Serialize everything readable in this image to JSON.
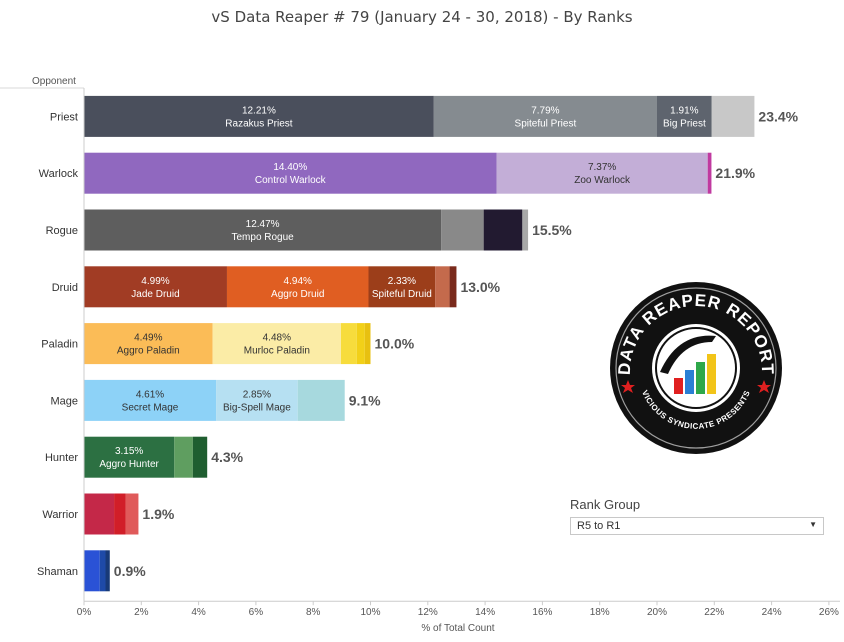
{
  "page": {
    "title": "vS Data Reaper #  79 (January 24 - 30, 2018) - By Ranks",
    "row_header": "Opponent"
  },
  "filter": {
    "title": "Rank Group",
    "selected": "R5 to R1",
    "icon": "chevron-down-icon"
  },
  "logo": {
    "text": "DATA REAPER REPORT",
    "subtext": "VICIOUS SYNDICATE PRESENTS",
    "colors": [
      "#e02020",
      "#2a7fd4",
      "#2ea84a",
      "#f2c418"
    ]
  },
  "chart_data": {
    "type": "bar",
    "orientation": "horizontal",
    "stacked": true,
    "title": "vS Data Reaper #  79 (January 24 - 30, 2018) - By Ranks",
    "xlabel": "% of Total Count",
    "ylabel": "Opponent",
    "xlim": [
      0,
      26
    ],
    "xticks": [
      "0%",
      "2%",
      "4%",
      "6%",
      "8%",
      "10%",
      "12%",
      "14%",
      "16%",
      "18%",
      "20%",
      "22%",
      "24%",
      "26%"
    ],
    "grid": false,
    "rows": [
      {
        "category": "Priest",
        "total": "23.4%",
        "segments": [
          {
            "value": 12.21,
            "label": "12.21%",
            "archetype": "Razakus Priest",
            "color": "#4a4f5c"
          },
          {
            "value": 7.79,
            "label": "7.79%",
            "archetype": "Spiteful Priest",
            "color": "#858b90"
          },
          {
            "value": 1.91,
            "label": "1.91%",
            "archetype": "Big Priest",
            "color": "#5e646e"
          },
          {
            "value": 1.49,
            "label": "",
            "archetype": "",
            "color": "#c8c8c8"
          }
        ]
      },
      {
        "category": "Warlock",
        "total": "21.9%",
        "segments": [
          {
            "value": 14.4,
            "label": "14.40%",
            "archetype": "Control Warlock",
            "color": "#9068bf"
          },
          {
            "value": 7.37,
            "label": "7.37%",
            "archetype": "Zoo Warlock",
            "color": "#c3aed7"
          },
          {
            "value": 0.13,
            "label": "",
            "archetype": "",
            "color": "#c03aa0"
          }
        ]
      },
      {
        "category": "Rogue",
        "total": "15.5%",
        "segments": [
          {
            "value": 12.47,
            "label": "12.47%",
            "archetype": "Tempo Rogue",
            "color": "#5e5e5e"
          },
          {
            "value": 1.48,
            "label": "",
            "archetype": "",
            "color": "#898989"
          },
          {
            "value": 1.35,
            "label": "",
            "archetype": "",
            "color": "#221a30"
          },
          {
            "value": 0.2,
            "label": "",
            "archetype": "",
            "color": "#a8a8a8"
          }
        ]
      },
      {
        "category": "Druid",
        "total": "13.0%",
        "segments": [
          {
            "value": 4.99,
            "label": "4.99%",
            "archetype": "Jade Druid",
            "color": "#a13c24"
          },
          {
            "value": 4.94,
            "label": "4.94%",
            "archetype": "Aggro Druid",
            "color": "#e05e22"
          },
          {
            "value": 2.33,
            "label": "2.33%",
            "archetype": "Spiteful Druid",
            "color": "#9c3e1a"
          },
          {
            "value": 0.5,
            "label": "",
            "archetype": "",
            "color": "#c46a4c"
          },
          {
            "value": 0.24,
            "label": "",
            "archetype": "",
            "color": "#7a2a1c"
          }
        ]
      },
      {
        "category": "Paladin",
        "total": "10.0%",
        "segments": [
          {
            "value": 4.49,
            "label": "4.49%",
            "archetype": "Aggro Paladin",
            "color": "#fbbc57"
          },
          {
            "value": 4.48,
            "label": "4.48%",
            "archetype": "Murloc Paladin",
            "color": "#fbeca6"
          },
          {
            "value": 0.55,
            "label": "",
            "archetype": "",
            "color": "#f7dc3c"
          },
          {
            "value": 0.28,
            "label": "",
            "archetype": "",
            "color": "#f2d018"
          },
          {
            "value": 0.2,
            "label": "",
            "archetype": "",
            "color": "#e8c010"
          }
        ]
      },
      {
        "category": "Mage",
        "total": "9.1%",
        "segments": [
          {
            "value": 4.61,
            "label": "4.61%",
            "archetype": "Secret Mage",
            "color": "#8dd2f7"
          },
          {
            "value": 2.85,
            "label": "2.85%",
            "archetype": "Big-Spell Mage",
            "color": "#b6e0f2"
          },
          {
            "value": 1.64,
            "label": "",
            "archetype": "",
            "color": "#a7d9de"
          }
        ]
      },
      {
        "category": "Hunter",
        "total": "4.3%",
        "segments": [
          {
            "value": 3.15,
            "label": "3.15%",
            "archetype": "Aggro Hunter",
            "color": "#2c7042"
          },
          {
            "value": 0.65,
            "label": "",
            "archetype": "",
            "color": "#5f9e60"
          },
          {
            "value": 0.5,
            "label": "",
            "archetype": "",
            "color": "#1f5e30"
          }
        ]
      },
      {
        "category": "Warrior",
        "total": "1.9%",
        "segments": [
          {
            "value": 1.05,
            "label": "",
            "archetype": "",
            "color": "#c42848"
          },
          {
            "value": 0.4,
            "label": "",
            "archetype": "",
            "color": "#d11e28"
          },
          {
            "value": 0.45,
            "label": "",
            "archetype": "",
            "color": "#e05a5a"
          }
        ]
      },
      {
        "category": "Shaman",
        "total": "0.9%",
        "segments": [
          {
            "value": 0.55,
            "label": "",
            "archetype": "",
            "color": "#2a52d6"
          },
          {
            "value": 0.2,
            "label": "",
            "archetype": "",
            "color": "#1e4aa8"
          },
          {
            "value": 0.15,
            "label": "",
            "archetype": "",
            "color": "#183a78"
          }
        ]
      }
    ]
  }
}
